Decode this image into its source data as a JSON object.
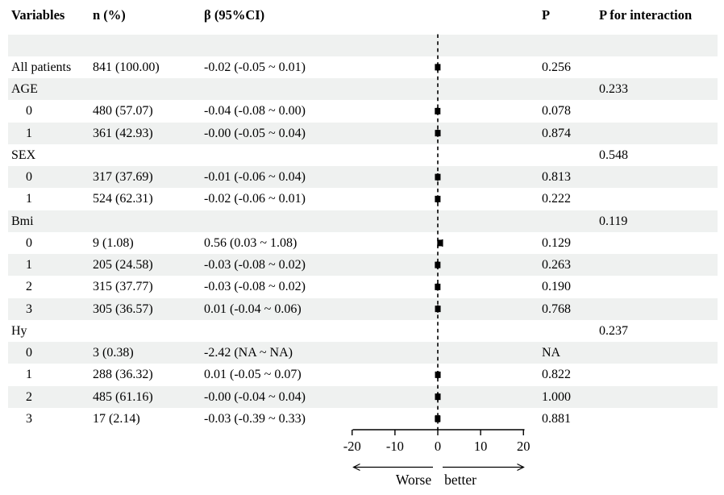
{
  "header": {
    "variables": "Variables",
    "n": "n (%)",
    "beta": "β (95%CI)",
    "p": "P",
    "p_interaction": "P for interaction"
  },
  "colors": {
    "row_shade": "#eff1f0",
    "text": "#000000",
    "marker": "#000000"
  },
  "chart_data": {
    "type": "forest",
    "title": "",
    "axis": {
      "min": -20,
      "max": 20,
      "ticks": [
        -20,
        -10,
        0,
        10,
        20
      ],
      "zero_line": 0
    },
    "direction_labels": {
      "left": "Worse",
      "right": "better"
    },
    "rows": [
      {
        "label": "",
        "indent": false,
        "shaded": true,
        "n": "",
        "beta_text": "",
        "beta": null,
        "lo": null,
        "hi": null,
        "p": "",
        "p_interaction": ""
      },
      {
        "label": "All patients",
        "indent": false,
        "shaded": false,
        "n": "841 (100.00)",
        "beta_text": "-0.02 (-0.05 ~ 0.01)",
        "beta": -0.02,
        "lo": -0.05,
        "hi": 0.01,
        "p": "0.256",
        "p_interaction": ""
      },
      {
        "label": "AGE",
        "indent": false,
        "shaded": true,
        "n": "",
        "beta_text": "",
        "beta": null,
        "lo": null,
        "hi": null,
        "p": "",
        "p_interaction": "0.233"
      },
      {
        "label": "0",
        "indent": true,
        "shaded": false,
        "n": "480 (57.07)",
        "beta_text": "-0.04 (-0.08 ~ 0.00)",
        "beta": -0.04,
        "lo": -0.08,
        "hi": 0.0,
        "p": "0.078",
        "p_interaction": ""
      },
      {
        "label": "1",
        "indent": true,
        "shaded": true,
        "n": "361 (42.93)",
        "beta_text": "-0.00 (-0.05 ~ 0.04)",
        "beta": 0.0,
        "lo": -0.05,
        "hi": 0.04,
        "p": "0.874",
        "p_interaction": ""
      },
      {
        "label": "SEX",
        "indent": false,
        "shaded": false,
        "n": "",
        "beta_text": "",
        "beta": null,
        "lo": null,
        "hi": null,
        "p": "",
        "p_interaction": "0.548"
      },
      {
        "label": "0",
        "indent": true,
        "shaded": true,
        "n": "317 (37.69)",
        "beta_text": "-0.01 (-0.06 ~ 0.04)",
        "beta": -0.01,
        "lo": -0.06,
        "hi": 0.04,
        "p": "0.813",
        "p_interaction": ""
      },
      {
        "label": "1",
        "indent": true,
        "shaded": false,
        "n": "524 (62.31)",
        "beta_text": "-0.02 (-0.06 ~ 0.01)",
        "beta": -0.02,
        "lo": -0.06,
        "hi": 0.01,
        "p": "0.222",
        "p_interaction": ""
      },
      {
        "label": "Bmi",
        "indent": false,
        "shaded": true,
        "n": "",
        "beta_text": "",
        "beta": null,
        "lo": null,
        "hi": null,
        "p": "",
        "p_interaction": "0.119"
      },
      {
        "label": "0",
        "indent": true,
        "shaded": false,
        "n": "9 (1.08)",
        "beta_text": "0.56 (0.03 ~ 1.08)",
        "beta": 0.56,
        "lo": 0.03,
        "hi": 1.08,
        "p": "0.129",
        "p_interaction": ""
      },
      {
        "label": "1",
        "indent": true,
        "shaded": true,
        "n": "205 (24.58)",
        "beta_text": "-0.03 (-0.08 ~ 0.02)",
        "beta": -0.03,
        "lo": -0.08,
        "hi": 0.02,
        "p": "0.263",
        "p_interaction": ""
      },
      {
        "label": "2",
        "indent": true,
        "shaded": false,
        "n": "315 (37.77)",
        "beta_text": "-0.03 (-0.08 ~ 0.02)",
        "beta": -0.03,
        "lo": -0.08,
        "hi": 0.02,
        "p": "0.190",
        "p_interaction": ""
      },
      {
        "label": "3",
        "indent": true,
        "shaded": true,
        "n": "305 (36.57)",
        "beta_text": "0.01 (-0.04 ~ 0.06)",
        "beta": 0.01,
        "lo": -0.04,
        "hi": 0.06,
        "p": "0.768",
        "p_interaction": ""
      },
      {
        "label": "Hy",
        "indent": false,
        "shaded": false,
        "n": "",
        "beta_text": "",
        "beta": null,
        "lo": null,
        "hi": null,
        "p": "",
        "p_interaction": "0.237"
      },
      {
        "label": "0",
        "indent": true,
        "shaded": true,
        "n": "3 (0.38)",
        "beta_text": "-2.42 (NA ~ NA)",
        "beta": -2.42,
        "lo": null,
        "hi": null,
        "p": "NA",
        "p_interaction": ""
      },
      {
        "label": "1",
        "indent": true,
        "shaded": false,
        "n": "288 (36.32)",
        "beta_text": "0.01 (-0.05 ~ 0.07)",
        "beta": 0.01,
        "lo": -0.05,
        "hi": 0.07,
        "p": "0.822",
        "p_interaction": ""
      },
      {
        "label": "2",
        "indent": true,
        "shaded": true,
        "n": "485 (61.16)",
        "beta_text": "-0.00 (-0.04 ~ 0.04)",
        "beta": 0.0,
        "lo": -0.04,
        "hi": 0.04,
        "p": "1.000",
        "p_interaction": ""
      },
      {
        "label": "3",
        "indent": true,
        "shaded": false,
        "n": "17 (2.14)",
        "beta_text": "-0.03 (-0.39 ~ 0.33)",
        "beta": -0.03,
        "lo": -0.39,
        "hi": 0.33,
        "p": "0.881",
        "p_interaction": ""
      }
    ]
  }
}
